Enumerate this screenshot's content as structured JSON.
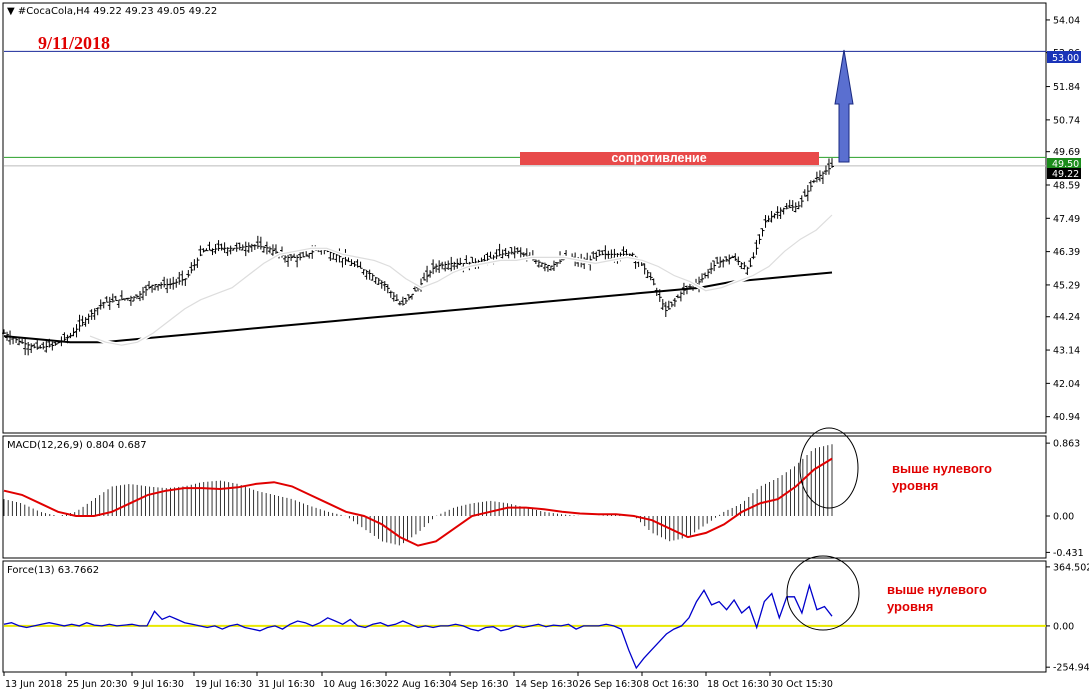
{
  "chart_data": [
    {
      "type": "candlestick",
      "header": "#CocaCola,H4  49.22 49.23 49.05 49.22",
      "date_label": "9/11/2018",
      "ylim": [
        40.5,
        54.5
      ],
      "yticks": [
        "54.04",
        "52.96",
        "51.84",
        "50.74",
        "49.69",
        "48.59",
        "47.49",
        "46.39",
        "45.29",
        "44.24",
        "43.14",
        "42.04",
        "40.94"
      ],
      "tag_blue": "53.00",
      "tag_green": "49.50",
      "tag_black": "49.22",
      "resistance_label": "сопротивление",
      "x_labels": [
        "13 Jun 2018",
        "25 Jun 20:30",
        "9 Jul 16:30",
        "19 Jul 16:30",
        "31 Jul 16:30",
        "10 Aug 16:30",
        "22 Aug 16:30",
        "4 Sep 16:30",
        "14 Sep 16:30",
        "26 Sep 16:30",
        "8 Oct 16:30",
        "18 Oct 16:30",
        "30 Oct 15:30"
      ],
      "price_path": [
        43.7,
        43.4,
        43.2,
        43.3,
        43.6,
        44.2,
        44.7,
        44.8,
        44.9,
        45.3,
        45.3,
        45.5,
        46.4,
        46.5,
        46.5,
        46.6,
        46.5,
        46.2,
        46.2,
        46.5,
        46.3,
        46.0,
        45.7,
        45.3,
        44.6,
        45.2,
        45.9,
        46.0,
        46.0,
        46.1,
        46.3,
        46.4,
        46.1,
        45.9,
        46.2,
        46.0,
        46.3,
        46.3,
        46.3,
        45.6,
        44.4,
        45.1,
        45.4,
        46.0,
        46.2,
        45.8,
        47.4,
        47.8,
        47.9,
        48.8,
        49.2
      ],
      "sma_fast": [
        43.6,
        43.4,
        43.3,
        43.4,
        43.7,
        44.1,
        44.5,
        44.8,
        45.0,
        45.2,
        45.6,
        46.0,
        46.3,
        46.4,
        46.5,
        46.5,
        46.3,
        46.2,
        46.1,
        45.9,
        45.5,
        45.2,
        45.4,
        45.7,
        45.9,
        46.0,
        46.1,
        46.1,
        46.2,
        46.2,
        46.2,
        46.1,
        46.0,
        46.1,
        46.2,
        46.1,
        45.9,
        45.6,
        45.4,
        45.1,
        45.2,
        45.4,
        45.6,
        45.9,
        46.4,
        46.8,
        47.1,
        47.6
      ],
      "sma_slow": [
        43.6,
        43.5,
        43.4,
        43.4,
        43.5,
        43.6,
        43.7,
        43.8,
        43.9,
        44.0,
        44.1,
        44.2,
        44.3,
        44.4,
        44.5,
        44.6,
        44.7,
        44.8,
        44.9,
        45.0,
        45.1,
        45.2,
        45.4,
        45.5,
        45.6,
        45.7
      ],
      "resistance": 49.5,
      "target": 53.0
    },
    {
      "type": "bar+line",
      "label": "MACD(12,26,9) 0.804 0.687",
      "ylim": [
        -0.45,
        0.9
      ],
      "yticks": [
        "0.863",
        "0.00",
        "-0.431"
      ],
      "annotation_line1": "выше нулевого",
      "annotation_line2": "уровня",
      "macd": [
        0.2,
        0.15,
        0.05,
        0.0,
        0.05,
        0.2,
        0.35,
        0.38,
        0.35,
        0.33,
        0.35,
        0.4,
        0.42,
        0.38,
        0.3,
        0.25,
        0.2,
        0.12,
        0.05,
        0.0,
        -0.15,
        -0.3,
        -0.35,
        -0.2,
        0.0,
        0.1,
        0.15,
        0.18,
        0.15,
        0.1,
        0.05,
        0.02,
        0.0,
        0.0,
        0.02,
        0.0,
        -0.2,
        -0.3,
        -0.25,
        -0.1,
        0.05,
        0.15,
        0.35,
        0.45,
        0.6,
        0.8,
        0.85
      ],
      "signal": [
        0.3,
        0.25,
        0.15,
        0.05,
        0.0,
        0.0,
        0.05,
        0.15,
        0.25,
        0.3,
        0.33,
        0.33,
        0.32,
        0.34,
        0.38,
        0.4,
        0.35,
        0.25,
        0.15,
        0.05,
        0.0,
        -0.1,
        -0.25,
        -0.35,
        -0.3,
        -0.15,
        0.0,
        0.05,
        0.1,
        0.1,
        0.08,
        0.05,
        0.03,
        0.02,
        0.02,
        0.0,
        -0.05,
        -0.15,
        -0.25,
        -0.2,
        -0.1,
        0.05,
        0.15,
        0.2,
        0.35,
        0.55,
        0.68
      ]
    },
    {
      "type": "line",
      "label": "Force(13) 63.7662",
      "ylim": [
        -260,
        370
      ],
      "yticks": [
        "364.5027",
        "0.00",
        "-254.940"
      ],
      "annotation_line1": "выше нулевого",
      "annotation_line2": "уровня",
      "force": [
        10,
        20,
        0,
        -10,
        0,
        10,
        20,
        10,
        0,
        10,
        0,
        20,
        5,
        0,
        10,
        0,
        5,
        10,
        0,
        0,
        90,
        40,
        60,
        40,
        20,
        10,
        0,
        -10,
        0,
        -20,
        0,
        10,
        -10,
        -20,
        -30,
        -10,
        0,
        -20,
        10,
        30,
        20,
        0,
        20,
        50,
        30,
        10,
        40,
        0,
        -10,
        10,
        20,
        0,
        10,
        30,
        10,
        -10,
        0,
        -10,
        0,
        0,
        10,
        0,
        -20,
        -30,
        -10,
        -5,
        -30,
        -20,
        0,
        -10,
        0,
        10,
        -5,
        5,
        0,
        10,
        -20,
        0,
        0,
        0,
        10,
        0,
        -20,
        -150,
        -260,
        -200,
        -150,
        -100,
        -50,
        -20,
        0,
        50,
        150,
        220,
        130,
        150,
        100,
        160,
        80,
        120,
        -10,
        150,
        200,
        50,
        180,
        180,
        80,
        250,
        100,
        120,
        60
      ]
    }
  ]
}
